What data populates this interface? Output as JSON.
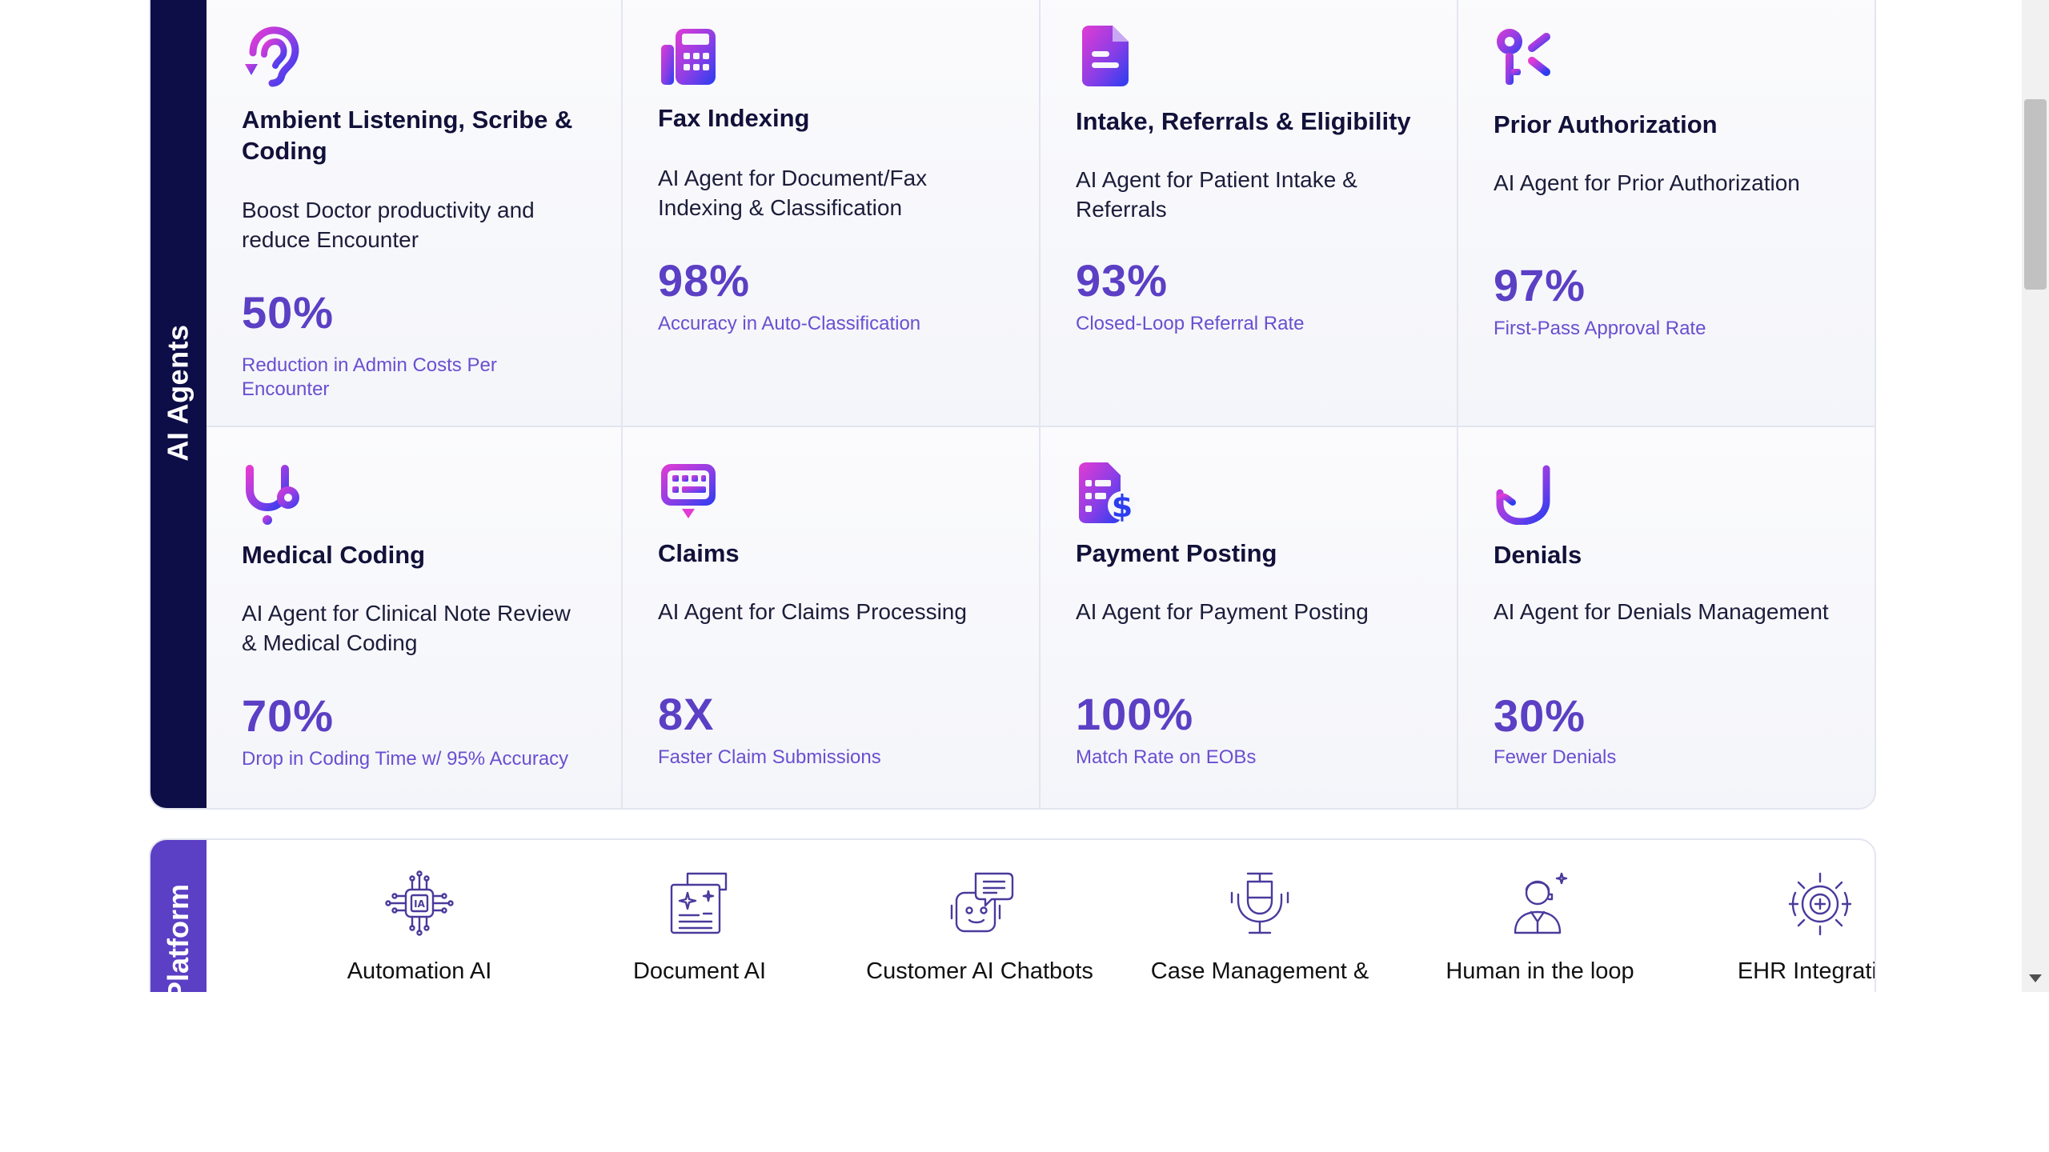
{
  "ai_agents": {
    "section_label": "AI Agents",
    "cards": [
      {
        "icon": "ear-listening-icon",
        "title": "Ambient Listening, Scribe & Coding",
        "description": "Boost Doctor productivity and reduce Encounter",
        "stat": "50%",
        "stat_label": "Reduction in Admin Costs Per Encounter"
      },
      {
        "icon": "fax-machine-icon",
        "title": "Fax Indexing",
        "description": "AI Agent for Document/Fax Indexing & Classification",
        "stat": "98%",
        "stat_label": "Accuracy in Auto-Classification"
      },
      {
        "icon": "document-icon",
        "title": "Intake, Referrals & Eligibility",
        "description": "AI Agent for Patient Intake & Referrals",
        "stat": "93%",
        "stat_label": "Closed-Loop Referral Rate"
      },
      {
        "icon": "keys-icon",
        "title": "Prior Authorization",
        "description": "AI Agent for Prior Authorization",
        "stat": "97%",
        "stat_label": "First-Pass Approval Rate"
      },
      {
        "icon": "stethoscope-icon",
        "title": "Medical Coding",
        "description": "AI Agent for Clinical Note Review & Medical Coding",
        "stat": "70%",
        "stat_label": "Drop in Coding Time w/ 95% Accuracy"
      },
      {
        "icon": "claims-message-icon",
        "title": "Claims",
        "description": "AI Agent for Claims Processing",
        "stat": "8X",
        "stat_label": "Faster Claim Submissions"
      },
      {
        "icon": "payment-document-icon",
        "title": "Payment Posting",
        "description": "AI Agent for Payment Posting",
        "stat": "100%",
        "stat_label": "Match Rate on EOBs"
      },
      {
        "icon": "hand-stop-icon",
        "title": "Denials",
        "description": "AI Agent for Denials Management",
        "stat": "30%",
        "stat_label": "Fewer Denials"
      }
    ]
  },
  "platform": {
    "section_label": "Platform",
    "items": [
      {
        "icon": "ai-chip-icon",
        "label": "Automation AI"
      },
      {
        "icon": "document-ai-icon",
        "label": "Document AI"
      },
      {
        "icon": "chatbot-icon",
        "label": "Customer AI Chatbots"
      },
      {
        "icon": "microphone-icon",
        "label": "Case Management &"
      },
      {
        "icon": "human-operator-icon",
        "label": "Human in the loop"
      },
      {
        "icon": "ehr-gear-icon",
        "label": "EHR Integration"
      }
    ]
  },
  "colors": {
    "agents_tab": "#0d0d47",
    "platform_tab": "#5b3fc4",
    "stat": "#5b3fc4",
    "icon_gradient_start": "#e23bd3",
    "icon_gradient_end": "#2a3df0"
  }
}
